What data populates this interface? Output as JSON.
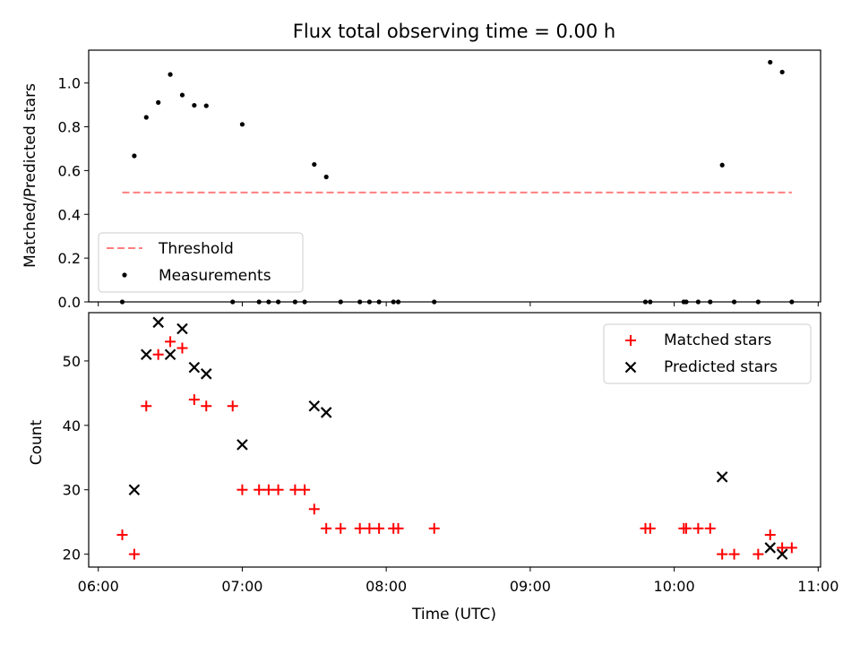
{
  "chart_data": [
    {
      "type": "scatter",
      "title": "Flux total observing time = 0.00 h",
      "xlabel": "",
      "ylabel": "Matched/Predicted stars",
      "xlim": [
        "05:56",
        "11:01"
      ],
      "ylim": [
        0,
        1.15
      ],
      "yticks": [
        0.0,
        0.2,
        0.4,
        0.6,
        0.8,
        1.0
      ],
      "ytick_labels": [
        "0.0",
        "0.2",
        "0.4",
        "0.6",
        "0.8",
        "1.0"
      ],
      "legend_position": "lower-left",
      "threshold": {
        "name": "Threshold",
        "value": 0.5,
        "x_range": [
          "06:10",
          "10:49"
        ],
        "color": "#ff7f7f",
        "style": "dashed"
      },
      "series": [
        {
          "name": "Measurements",
          "color": "#000000",
          "marker": "dot",
          "points": [
            [
              "06:10",
              0.0
            ],
            [
              "06:15",
              0.667
            ],
            [
              "06:20",
              0.843
            ],
            [
              "06:25",
              0.911
            ],
            [
              "06:30",
              1.039
            ],
            [
              "06:35",
              0.945
            ],
            [
              "06:40",
              0.898
            ],
            [
              "06:45",
              0.896
            ],
            [
              "06:56",
              0.0
            ],
            [
              "07:00",
              0.811
            ],
            [
              "07:07",
              0.0
            ],
            [
              "07:11",
              0.0
            ],
            [
              "07:15",
              0.0
            ],
            [
              "07:22",
              0.0
            ],
            [
              "07:26",
              0.0
            ],
            [
              "07:30",
              0.628
            ],
            [
              "07:35",
              0.571
            ],
            [
              "07:41",
              0.0
            ],
            [
              "07:49",
              0.0
            ],
            [
              "07:53",
              0.0
            ],
            [
              "07:57",
              0.0
            ],
            [
              "08:03",
              0.0
            ],
            [
              "08:05",
              0.0
            ],
            [
              "08:20",
              0.0
            ],
            [
              "09:48",
              0.0
            ],
            [
              "09:50",
              0.0
            ],
            [
              "10:04",
              0.0
            ],
            [
              "10:05",
              0.0
            ],
            [
              "10:10",
              0.0
            ],
            [
              "10:15",
              0.0
            ],
            [
              "10:20",
              0.625
            ],
            [
              "10:25",
              0.0
            ],
            [
              "10:35",
              0.0
            ],
            [
              "10:40",
              1.095
            ],
            [
              "10:45",
              1.05
            ],
            [
              "10:49",
              0.0
            ]
          ]
        }
      ]
    },
    {
      "type": "scatter",
      "title": "",
      "xlabel": "Time (UTC)",
      "ylabel": "Count",
      "xlim": [
        "05:56",
        "11:01"
      ],
      "ylim": [
        18,
        57.5
      ],
      "xticks": [
        "06:00",
        "07:00",
        "08:00",
        "09:00",
        "10:00",
        "11:00"
      ],
      "yticks": [
        20,
        30,
        40,
        50
      ],
      "legend_position": "upper-right",
      "series": [
        {
          "name": "Matched stars",
          "color": "#ff0000",
          "marker": "plus",
          "points": [
            [
              "06:10",
              23
            ],
            [
              "06:15",
              20
            ],
            [
              "06:20",
              43
            ],
            [
              "06:25",
              51
            ],
            [
              "06:30",
              53
            ],
            [
              "06:35",
              52
            ],
            [
              "06:40",
              44
            ],
            [
              "06:45",
              43
            ],
            [
              "06:56",
              43
            ],
            [
              "07:00",
              30
            ],
            [
              "07:07",
              30
            ],
            [
              "07:11",
              30
            ],
            [
              "07:15",
              30
            ],
            [
              "07:22",
              30
            ],
            [
              "07:26",
              30
            ],
            [
              "07:30",
              27
            ],
            [
              "07:35",
              24
            ],
            [
              "07:41",
              24
            ],
            [
              "07:49",
              24
            ],
            [
              "07:53",
              24
            ],
            [
              "07:57",
              24
            ],
            [
              "08:03",
              24
            ],
            [
              "08:05",
              24
            ],
            [
              "08:20",
              24
            ],
            [
              "09:48",
              24
            ],
            [
              "09:50",
              24
            ],
            [
              "10:04",
              24
            ],
            [
              "10:05",
              24
            ],
            [
              "10:10",
              24
            ],
            [
              "10:15",
              24
            ],
            [
              "10:20",
              20
            ],
            [
              "10:25",
              20
            ],
            [
              "10:35",
              20
            ],
            [
              "10:40",
              23
            ],
            [
              "10:45",
              21
            ],
            [
              "10:49",
              21
            ]
          ]
        },
        {
          "name": "Predicted stars",
          "color": "#000000",
          "marker": "x",
          "points": [
            [
              "06:15",
              30
            ],
            [
              "06:20",
              51
            ],
            [
              "06:25",
              56
            ],
            [
              "06:30",
              51
            ],
            [
              "06:35",
              55
            ],
            [
              "06:40",
              49
            ],
            [
              "06:45",
              48
            ],
            [
              "07:00",
              37
            ],
            [
              "07:30",
              43
            ],
            [
              "07:35",
              42
            ],
            [
              "10:20",
              32
            ],
            [
              "10:40",
              21
            ],
            [
              "10:45",
              20
            ]
          ]
        }
      ]
    }
  ]
}
